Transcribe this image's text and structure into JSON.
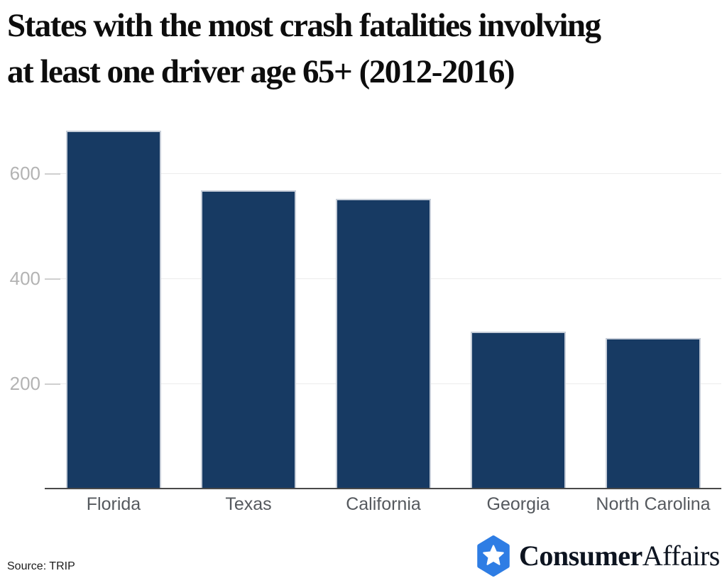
{
  "page": {
    "title_line1": "States with the most crash fatalities involving",
    "title_line2": "at least one driver age 65+ (2012-2016)"
  },
  "footer": {
    "source": "Source: TRIP",
    "logo": {
      "consumer": "Consumer",
      "affairs": "Affairs",
      "shield_color": "#2e7de4",
      "star_color": "#ffffff"
    }
  },
  "chart_data": {
    "type": "bar",
    "title": "States with the most crash fatalities involving at least one driver age 65+ (2012-2016)",
    "categories": [
      "Florida",
      "Texas",
      "California",
      "Georgia",
      "North Carolina"
    ],
    "values": [
      681,
      567,
      552,
      298,
      286
    ],
    "xlabel": "",
    "ylabel": "",
    "ylim": [
      0,
      700
    ],
    "yticks": [
      200,
      400,
      600
    ],
    "grid": true,
    "legend_position": "none",
    "bar_color": "#173a63",
    "bar_border_color": "#c6cdd8",
    "gridline_color": "#ececec",
    "y_tick_label_color": "#b3b3b3",
    "x_label_color": "#55595e",
    "axis_color": "#4a4a4a"
  }
}
